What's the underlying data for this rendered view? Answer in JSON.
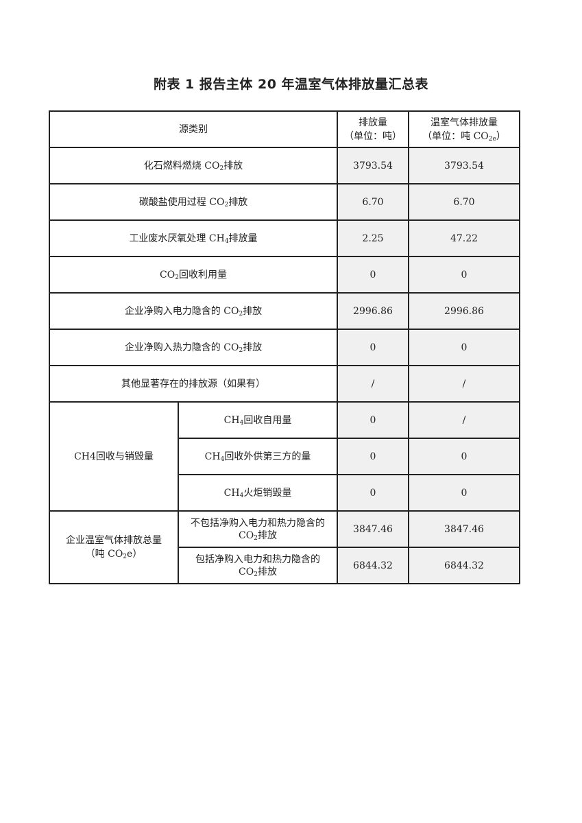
{
  "title": "附表 1 报告主体 20 年温室气体排放量汇总表",
  "header": {
    "source": "源类别",
    "col1_line1": "排放量",
    "col1_line2": "（单位：吨）",
    "col2_line1": "温室气体排放量",
    "col2_line2_pre": "（单位：吨 CO",
    "col2_line2_sub": "2e",
    "col2_line2_post": "）"
  },
  "rows": [
    {
      "pre": "化石燃料燃烧 CO",
      "sub": "2",
      "post": "排放",
      "v1": "3793.54",
      "v2": "3793.54"
    },
    {
      "pre": "碳酸盐使用过程 CO",
      "sub": "2",
      "post": "排放",
      "v1": "6.70",
      "v2": "6.70"
    },
    {
      "pre": "工业废水厌氧处理 CH",
      "sub": "4",
      "post": "排放量",
      "v1": "2.25",
      "v2": "47.22"
    },
    {
      "pre": "CO",
      "sub": "2",
      "post": "回收利用量",
      "v1": "0",
      "v2": "0"
    },
    {
      "pre": "企业净购入电力隐含的 CO",
      "sub": "2",
      "post": "排放",
      "v1": "2996.86",
      "v2": "2996.86"
    },
    {
      "pre": "企业净购入热力隐含的 CO",
      "sub": "2",
      "post": "排放",
      "v1": "0",
      "v2": "0"
    },
    {
      "pre": "其他显著存在的排放源（如果有）",
      "sub": "",
      "post": "",
      "v1": "/",
      "v2": "/"
    }
  ],
  "ch4_group": {
    "label": "CH4回收与销毁量",
    "items": [
      {
        "pre": "CH",
        "sub": "4",
        "post": "回收自用量",
        "v1": "0",
        "v2": "/"
      },
      {
        "pre": "CH",
        "sub": "4",
        "post": "回收外供第三方的量",
        "v1": "0",
        "v2": "0"
      },
      {
        "pre": "CH",
        "sub": "4",
        "post": "火炬销毁量",
        "v1": "0",
        "v2": "0"
      }
    ]
  },
  "total_group": {
    "label_line1": "企业温室气体排放总量",
    "label_line2_pre": "（吨 CO",
    "label_line2_sub": "2",
    "label_line2_post": "e）",
    "items": [
      {
        "line1": "不包括净购入电力和热力隐含的",
        "pre": "CO",
        "sub": "2",
        "post": "排放",
        "v1": "3847.46",
        "v2": "3847.46"
      },
      {
        "line1": "包括净购入电力和热力隐含的",
        "pre": "CO",
        "sub": "2",
        "post": "排放",
        "v1": "6844.32",
        "v2": "6844.32"
      }
    ]
  }
}
